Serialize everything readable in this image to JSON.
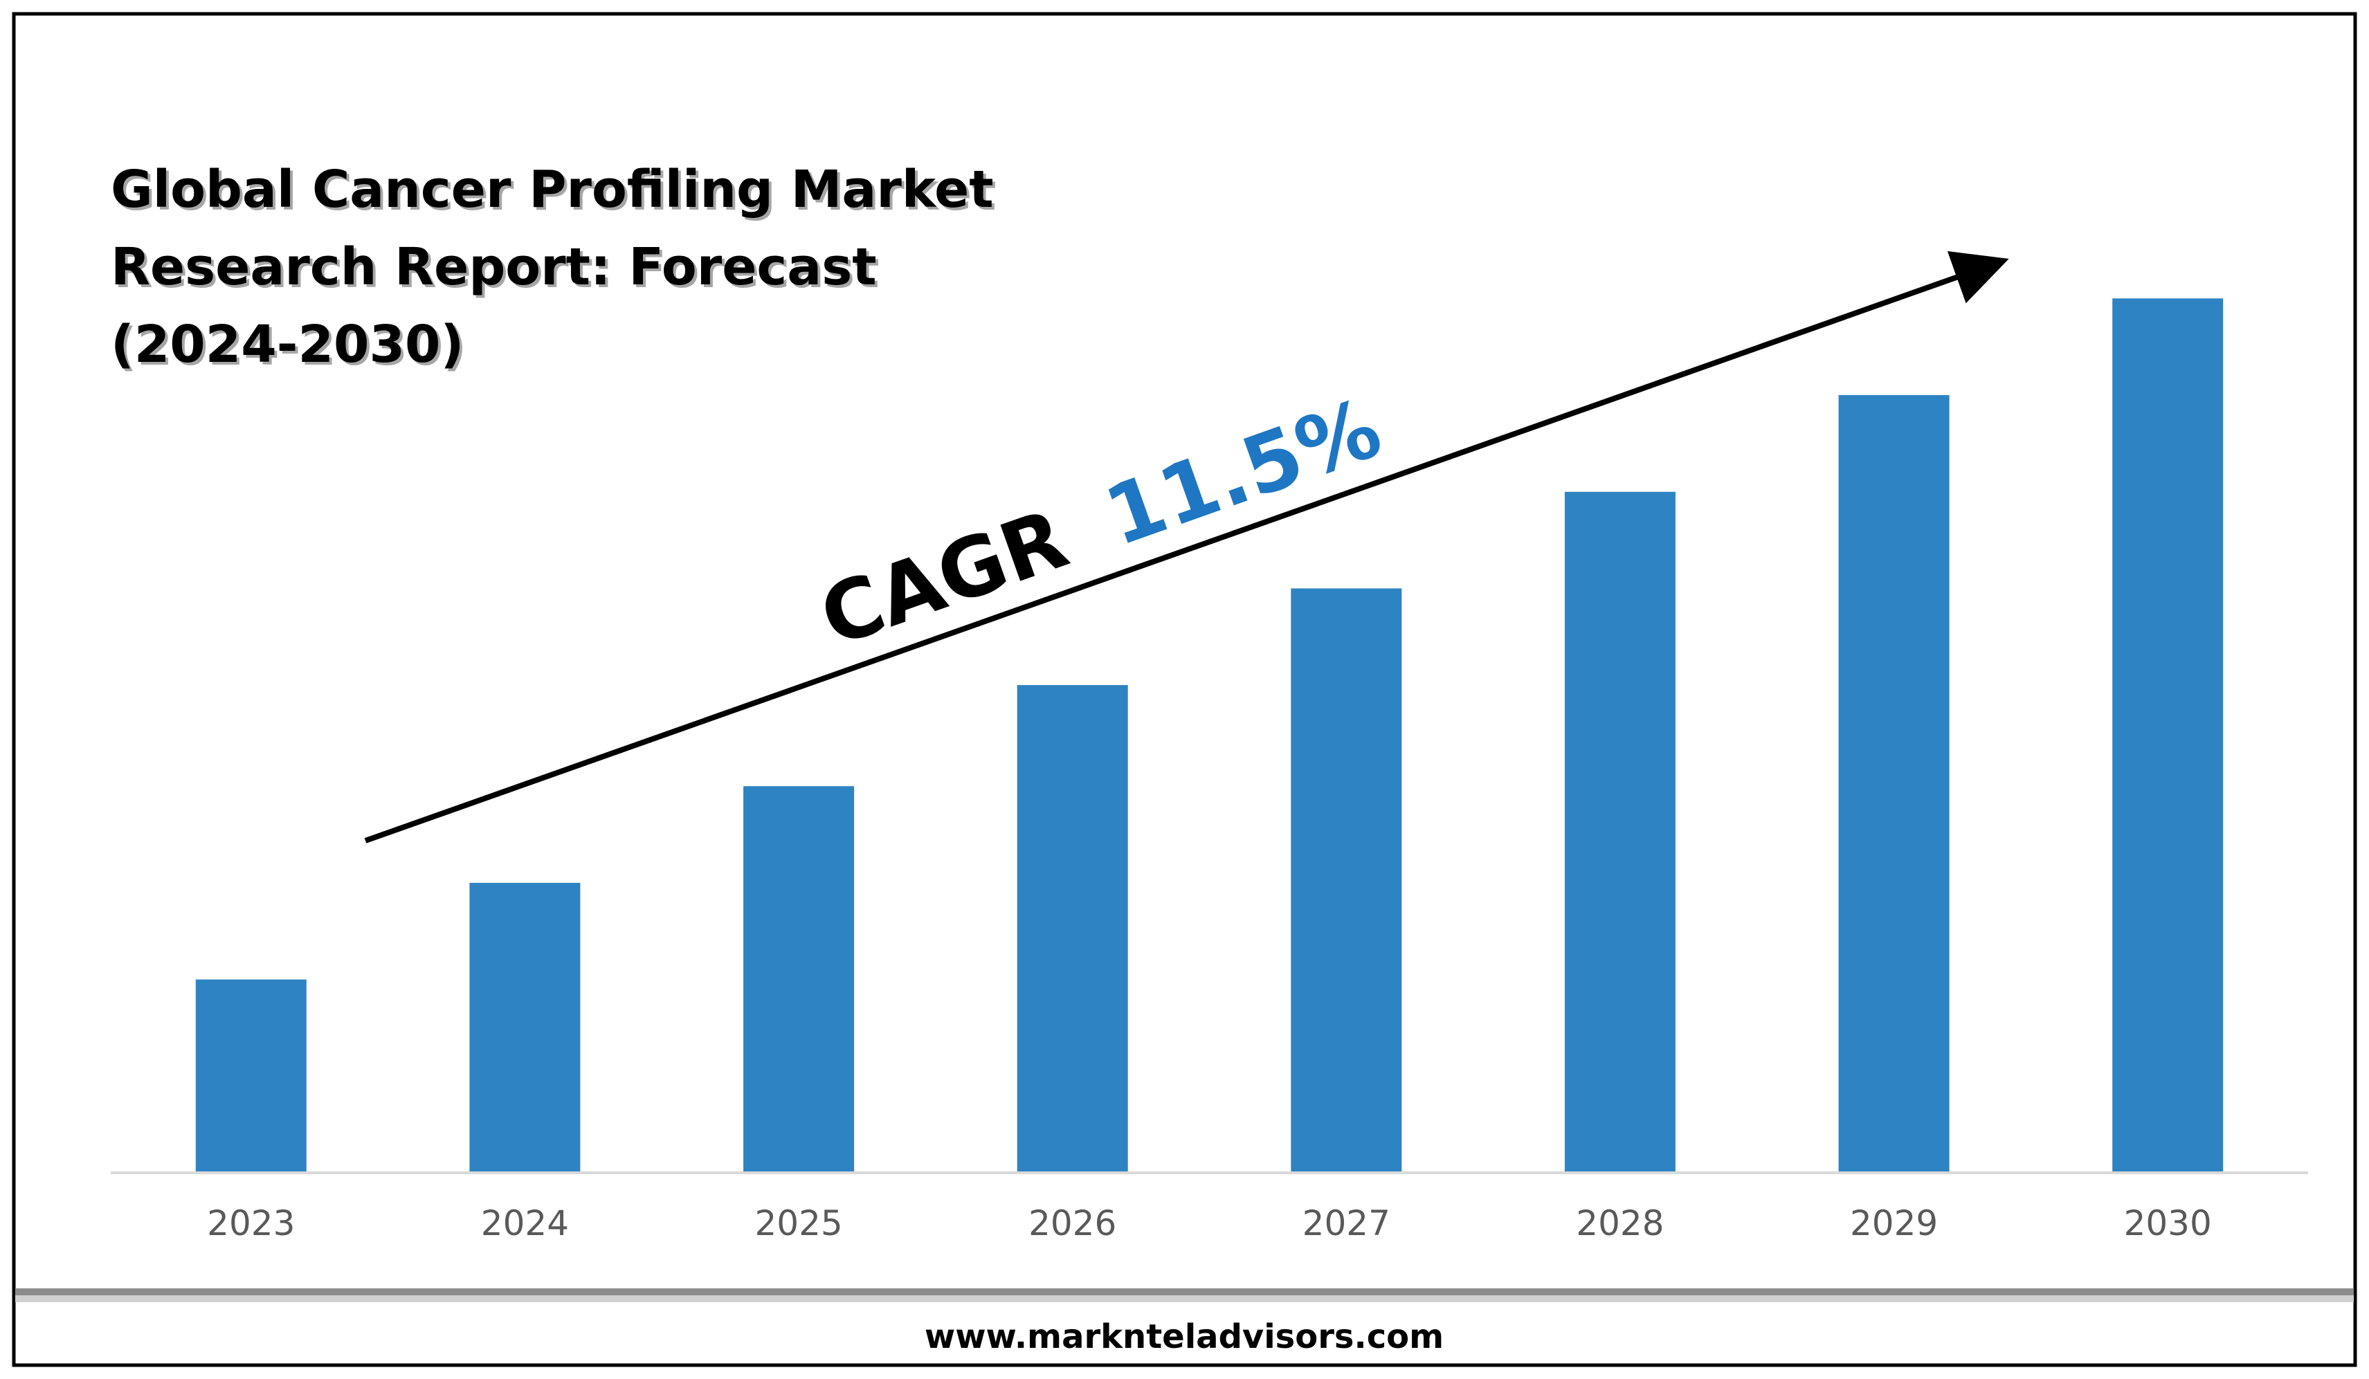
{
  "title_lines": [
    "Global Cancer Profiling Market",
    "Research Report: Forecast",
    "(2024-2030)"
  ],
  "cagr": {
    "label": "CAGR",
    "value": "11.5%"
  },
  "footer": {
    "url": "www.marknteladvisors.com"
  },
  "colors": {
    "bar": "#2e83c3",
    "cagr_value": "#1f77c4",
    "axis": "#d9d9d9",
    "tick_text": "#595959"
  },
  "chart_data": {
    "type": "bar",
    "title": "Global Cancer Profiling Market Research Report: Forecast (2024-2030)",
    "categories": [
      "2023",
      "2024",
      "2025",
      "2026",
      "2027",
      "2028",
      "2029",
      "2030"
    ],
    "values": [
      22,
      33,
      44,
      55.5,
      66.5,
      77.5,
      88.5,
      99.5
    ],
    "ylim": [
      0,
      100
    ],
    "xlabel": "",
    "ylabel": "",
    "grid": false,
    "legend": "none",
    "annotation": "CAGR 11.5%"
  }
}
